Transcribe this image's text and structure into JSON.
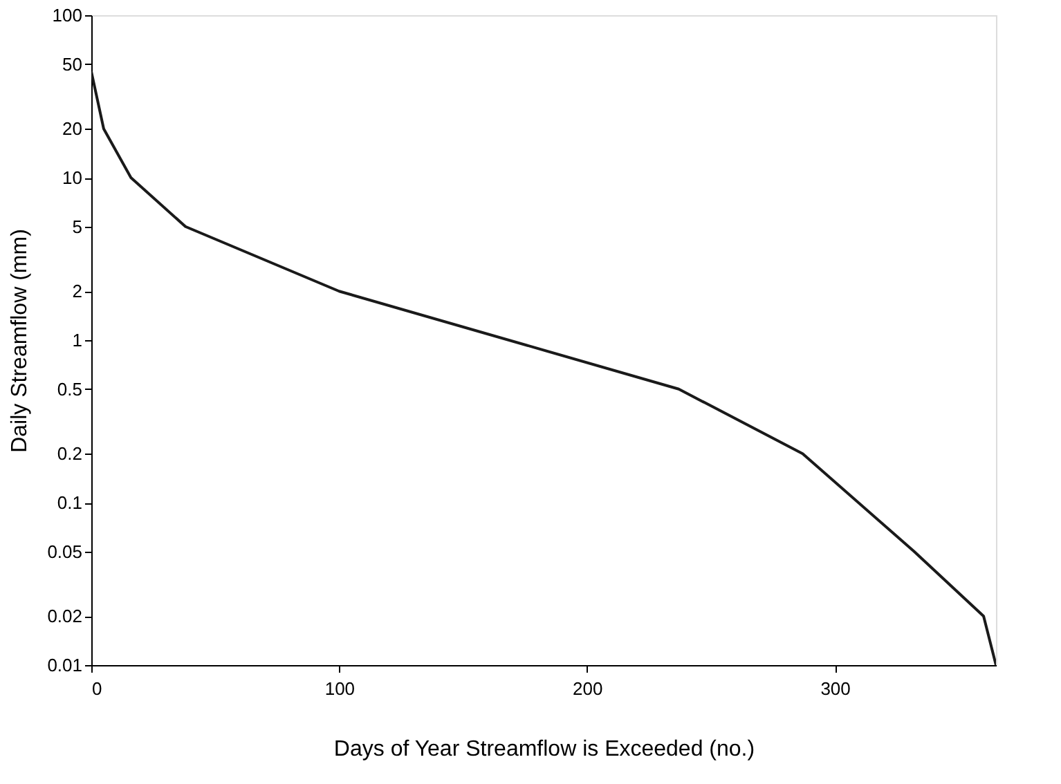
{
  "chart_data": {
    "type": "line",
    "xlabel": "Days of Year Streamflow is Exceeded (no.)",
    "ylabel": "Daily Streamflow (mm)",
    "x": [
      0,
      5,
      16,
      38,
      100,
      237,
      287,
      332,
      360,
      365
    ],
    "series": [
      {
        "color": "#1a1a1a",
        "values": [
          45,
          20,
          10,
          5,
          2,
          0.5,
          0.2,
          0.05,
          0.02,
          0.01
        ]
      }
    ],
    "xlim": [
      0,
      365
    ],
    "xticks": [
      0,
      100,
      200,
      300
    ],
    "ylim": [
      0.01,
      100
    ],
    "yticks": [
      0.01,
      0.02,
      0.05,
      0.1,
      0.2,
      0.5,
      1,
      2,
      5,
      10,
      20,
      50,
      100
    ],
    "log": "y",
    "grid": false,
    "marker": "none",
    "line_style": "solid"
  }
}
